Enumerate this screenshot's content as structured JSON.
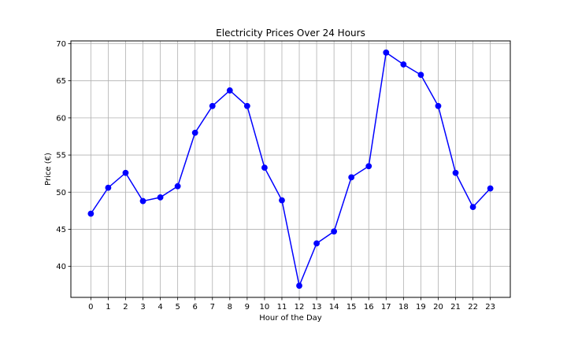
{
  "chart_data": {
    "type": "line",
    "title": "Electricity Prices Over 24 Hours",
    "xlabel": "Hour of the Day",
    "ylabel": "Price (€)",
    "x": [
      0,
      1,
      2,
      3,
      4,
      5,
      6,
      7,
      8,
      9,
      10,
      11,
      12,
      13,
      14,
      15,
      16,
      17,
      18,
      19,
      20,
      21,
      22,
      23
    ],
    "series": [
      {
        "values": [
          47.1,
          50.6,
          52.6,
          48.8,
          49.3,
          50.8,
          58.0,
          61.6,
          63.7,
          61.6,
          53.3,
          48.9,
          37.4,
          43.1,
          44.7,
          52.0,
          53.5,
          68.8,
          67.2,
          65.8,
          61.6,
          52.6,
          48.0,
          50.5
        ],
        "color": "#0000ff",
        "marker": "circle"
      }
    ],
    "xticks": [
      "0",
      "1",
      "2",
      "3",
      "4",
      "5",
      "6",
      "7",
      "8",
      "9",
      "10",
      "11",
      "12",
      "13",
      "14",
      "15",
      "16",
      "17",
      "18",
      "19",
      "20",
      "21",
      "22",
      "23"
    ],
    "yticks": [
      40,
      45,
      50,
      55,
      60,
      65,
      70
    ],
    "xlim": [
      -1.15,
      24.15
    ],
    "ylim": [
      35.83,
      70.37
    ],
    "grid": true
  }
}
